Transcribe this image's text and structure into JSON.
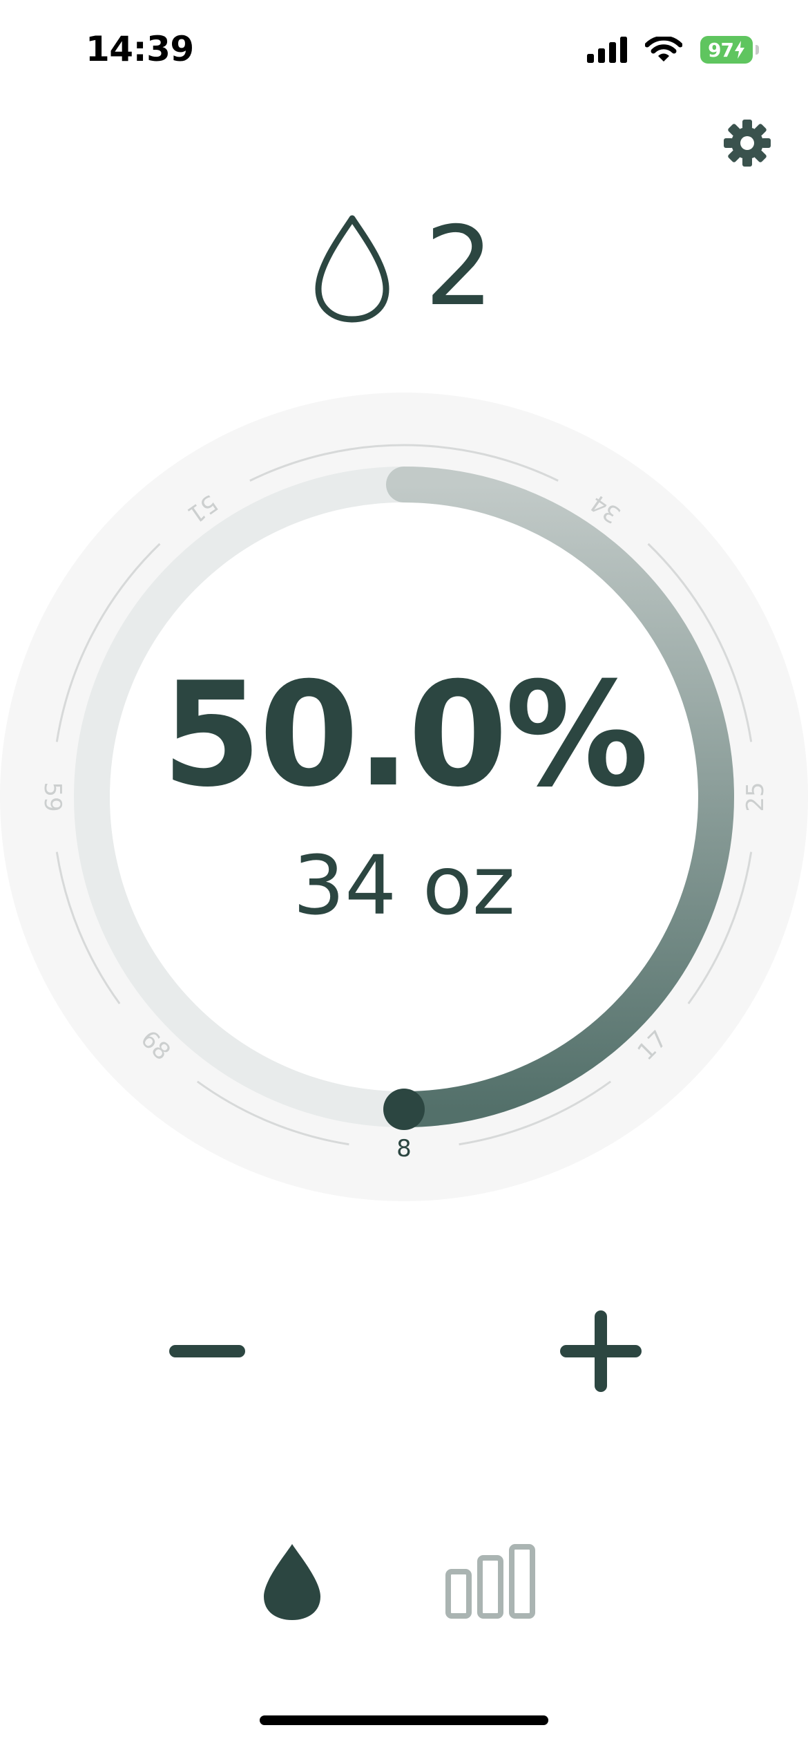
{
  "status_bar": {
    "time": "14:39",
    "battery": "97",
    "icons": [
      "cellular-signal-icon",
      "wifi-icon",
      "battery-charging-icon"
    ]
  },
  "header": {
    "settings_icon": "gear-icon",
    "glass_icon": "water-drop-outline-icon",
    "glass_count": "2"
  },
  "dial": {
    "percent_text": "50.0%",
    "amount_text": "34 oz",
    "progress_fraction": 0.5,
    "scale_labels": [
      "8",
      "17",
      "25",
      "34",
      "51",
      "59",
      "68"
    ],
    "colors": {
      "accent": "#2c4641",
      "track": "#e8ebeb",
      "outer_ring": "#f6f6f6",
      "progress_start": "#c2cac8",
      "progress_end": "#53706a"
    }
  },
  "controls": {
    "decrease_icon": "minus-icon",
    "increase_icon": "plus-icon"
  },
  "tab_bar": {
    "tabs": [
      {
        "name": "intake",
        "icon": "water-drop-filled-icon",
        "active": true
      },
      {
        "name": "statistics",
        "icon": "bar-chart-icon",
        "active": false
      }
    ]
  }
}
